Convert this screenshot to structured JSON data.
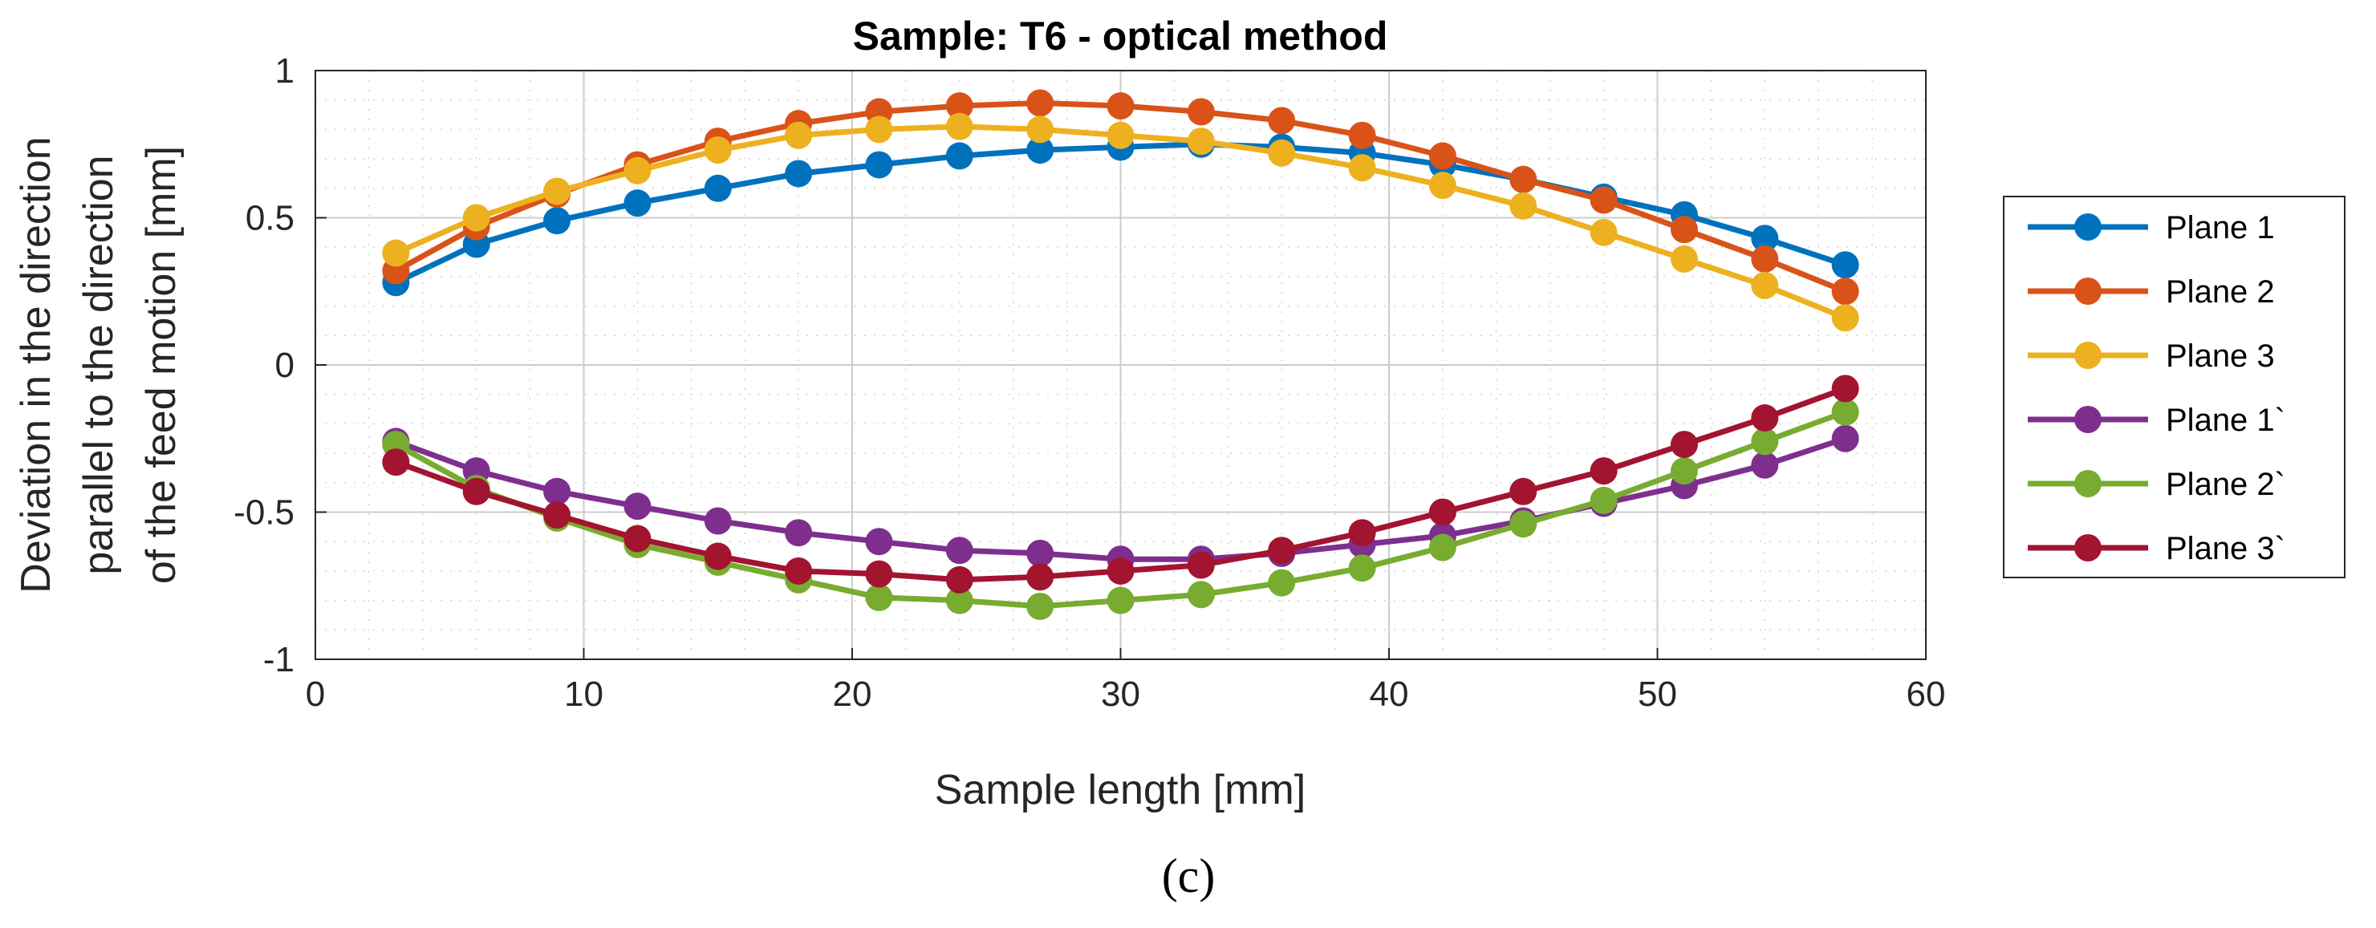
{
  "chart_data": {
    "type": "line",
    "title": "Sample: T6 - optical method",
    "xlabel": "Sample length [mm]",
    "ylabel_lines": [
      "Deviation in the direction",
      "parallel to the direction",
      "of the feed motion [mm]"
    ],
    "xlim": [
      0,
      60
    ],
    "ylim": [
      -1,
      1
    ],
    "xticks": [
      0,
      10,
      20,
      30,
      40,
      50,
      60
    ],
    "yticks": [
      {
        "value": 1,
        "label": "1"
      },
      {
        "value": 0.5,
        "label": "0.5"
      },
      {
        "value": 0,
        "label": "0"
      },
      {
        "value": -0.5,
        "label": "-0.5"
      },
      {
        "value": -1,
        "label": "-1"
      }
    ],
    "grid": true,
    "legend_position": "outside-right",
    "x": [
      3,
      6,
      9,
      12,
      15,
      18,
      21,
      24,
      27,
      30,
      33,
      36,
      39,
      42,
      45,
      48,
      51,
      54,
      57
    ],
    "series": [
      {
        "name": "Plane 1",
        "color": "#0072BD",
        "values": [
          0.28,
          0.41,
          0.49,
          0.55,
          0.6,
          0.65,
          0.68,
          0.71,
          0.73,
          0.74,
          0.75,
          0.74,
          0.72,
          0.68,
          0.63,
          0.57,
          0.51,
          0.43,
          0.34
        ]
      },
      {
        "name": "Plane 2",
        "color": "#D95319",
        "values": [
          0.32,
          0.47,
          0.58,
          0.68,
          0.76,
          0.82,
          0.86,
          0.88,
          0.89,
          0.88,
          0.86,
          0.83,
          0.78,
          0.71,
          0.63,
          0.56,
          0.46,
          0.36,
          0.25
        ]
      },
      {
        "name": "Plane 3",
        "color": "#EDB120",
        "values": [
          0.38,
          0.5,
          0.59,
          0.66,
          0.73,
          0.78,
          0.8,
          0.81,
          0.8,
          0.78,
          0.76,
          0.72,
          0.67,
          0.61,
          0.54,
          0.45,
          0.36,
          0.27,
          0.16
        ]
      },
      {
        "name": "Plane 1`",
        "color": "#7E2F8E",
        "values": [
          -0.26,
          -0.36,
          -0.43,
          -0.48,
          -0.53,
          -0.57,
          -0.6,
          -0.63,
          -0.64,
          -0.66,
          -0.66,
          -0.64,
          -0.61,
          -0.58,
          -0.53,
          -0.47,
          -0.41,
          -0.34,
          -0.25
        ]
      },
      {
        "name": "Plane 2`",
        "color": "#77AC30",
        "values": [
          -0.27,
          -0.42,
          -0.52,
          -0.61,
          -0.67,
          -0.73,
          -0.79,
          -0.8,
          -0.82,
          -0.8,
          -0.78,
          -0.74,
          -0.69,
          -0.62,
          -0.54,
          -0.46,
          -0.36,
          -0.26,
          -0.16
        ]
      },
      {
        "name": "Plane 3`",
        "color": "#A2142F",
        "values": [
          -0.33,
          -0.43,
          -0.51,
          -0.59,
          -0.65,
          -0.7,
          -0.71,
          -0.73,
          -0.72,
          -0.7,
          -0.68,
          -0.63,
          -0.57,
          -0.5,
          -0.43,
          -0.36,
          -0.27,
          -0.18,
          -0.08
        ]
      }
    ]
  },
  "caption": "(c)"
}
